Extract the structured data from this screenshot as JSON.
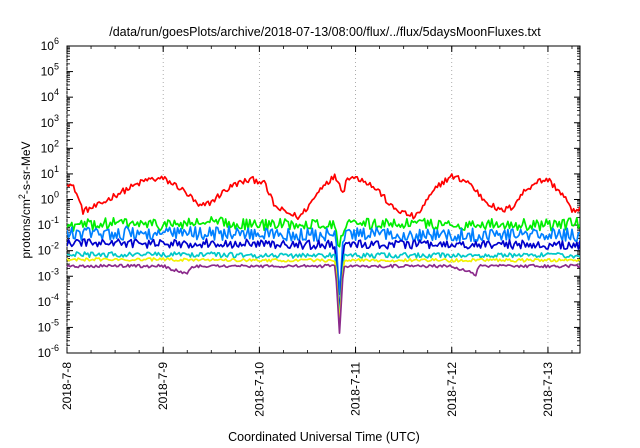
{
  "chart_data": {
    "type": "line",
    "title": "/data/run/goesPlots/archive/2018-07-13/08:00/flux/../flux/5daysMoonFluxes.txt",
    "xlabel": "Coordinated Universal Time (UTC)",
    "ylabel": {
      "pre": "protons/cm",
      "sup": "2",
      "post": "-s-sr-MeV"
    },
    "y_scale": "log",
    "ylim": [
      1e-06,
      1000000.0
    ],
    "yticks": [
      {
        "value": 1e-06,
        "base": "10",
        "exp": "-6"
      },
      {
        "value": 1e-05,
        "base": "10",
        "exp": "-5"
      },
      {
        "value": 0.0001,
        "base": "10",
        "exp": "-4"
      },
      {
        "value": 0.001,
        "base": "10",
        "exp": "-3"
      },
      {
        "value": 0.01,
        "base": "10",
        "exp": "-2"
      },
      {
        "value": 0.1,
        "base": "10",
        "exp": "-1"
      },
      {
        "value": 1.0,
        "base": "10",
        "exp": "0"
      },
      {
        "value": 10.0,
        "base": "10",
        "exp": "1"
      },
      {
        "value": 100.0,
        "base": "10",
        "exp": "2"
      },
      {
        "value": 1000.0,
        "base": "10",
        "exp": "3"
      },
      {
        "value": 10000.0,
        "base": "10",
        "exp": "4"
      },
      {
        "value": 100000.0,
        "base": "10",
        "exp": "5"
      },
      {
        "value": 1000000.0,
        "base": "10",
        "exp": "6"
      }
    ],
    "xlim": [
      "2018-07-08T00:00",
      "2018-07-13T08:00"
    ],
    "xticks": [
      {
        "date": "2018-07-08T00:00",
        "label": "2018-7-8"
      },
      {
        "date": "2018-07-09T00:00",
        "label": "2018-7-9"
      },
      {
        "date": "2018-07-10T00:00",
        "label": "2018-7-10"
      },
      {
        "date": "2018-07-11T00:00",
        "label": "2018-7-11"
      },
      {
        "date": "2018-07-12T00:00",
        "label": "2018-7-12"
      },
      {
        "date": "2018-07-13T00:00",
        "label": "2018-7-13"
      }
    ],
    "grid": true,
    "legend": "none",
    "series": [
      {
        "color": "#ff0000",
        "jitter": 0.25,
        "points": [
          [
            "2018-07-08T00:00",
            5.0
          ],
          [
            "2018-07-08T02:00",
            2.5
          ],
          [
            "2018-07-08T04:00",
            0.35
          ],
          [
            "2018-07-08T08:00",
            0.6
          ],
          [
            "2018-07-08T12:00",
            1.5
          ],
          [
            "2018-07-08T16:00",
            3.0
          ],
          [
            "2018-07-08T20:00",
            6.0
          ],
          [
            "2018-07-09T00:00",
            6.5
          ],
          [
            "2018-07-09T04:00",
            3.0
          ],
          [
            "2018-07-09T07:00",
            1.2
          ],
          [
            "2018-07-09T09:00",
            0.5
          ],
          [
            "2018-07-09T12:00",
            0.8
          ],
          [
            "2018-07-09T15:00",
            2.0
          ],
          [
            "2018-07-09T18:00",
            4.0
          ],
          [
            "2018-07-09T22:00",
            6.0
          ],
          [
            "2018-07-10T01:00",
            5.0
          ],
          [
            "2018-07-10T04:00",
            0.5
          ],
          [
            "2018-07-10T07:00",
            0.3
          ],
          [
            "2018-07-10T10:00",
            0.2
          ],
          [
            "2018-07-10T13:00",
            0.8
          ],
          [
            "2018-07-10T16:00",
            4.0
          ],
          [
            "2018-07-10T19:00",
            8.0
          ],
          [
            "2018-07-10T21:00",
            2.0
          ],
          [
            "2018-07-10T22:00",
            8.0
          ],
          [
            "2018-07-11T02:00",
            6.0
          ],
          [
            "2018-07-11T06:00",
            2.0
          ],
          [
            "2018-07-11T09:00",
            0.5
          ],
          [
            "2018-07-11T12:00",
            0.3
          ],
          [
            "2018-07-11T15:00",
            0.2
          ],
          [
            "2018-07-11T18:00",
            1.0
          ],
          [
            "2018-07-11T21:00",
            4.0
          ],
          [
            "2018-07-12T00:00",
            8.0
          ],
          [
            "2018-07-12T04:00",
            5.0
          ],
          [
            "2018-07-12T08:00",
            1.0
          ],
          [
            "2018-07-12T12:00",
            0.35
          ],
          [
            "2018-07-12T15:00",
            0.5
          ],
          [
            "2018-07-12T18:00",
            2.0
          ],
          [
            "2018-07-12T21:00",
            5.0
          ],
          [
            "2018-07-13T00:00",
            6.0
          ],
          [
            "2018-07-13T03:00",
            2.0
          ],
          [
            "2018-07-13T05:00",
            0.8
          ],
          [
            "2018-07-13T06:00",
            0.3
          ],
          [
            "2018-07-13T07:00",
            0.4
          ],
          [
            "2018-07-13T08:00",
            0.5
          ]
        ]
      },
      {
        "color": "#00ee00",
        "jitter": 0.45,
        "points": [
          [
            "2018-07-08T00:00",
            0.09
          ],
          [
            "2018-07-08T12:00",
            0.12
          ],
          [
            "2018-07-09T00:00",
            0.1
          ],
          [
            "2018-07-09T12:00",
            0.13
          ],
          [
            "2018-07-10T00:00",
            0.1
          ],
          [
            "2018-07-10T12:00",
            0.12
          ],
          [
            "2018-07-10T19:00",
            0.1
          ],
          [
            "2018-07-10T20:00",
            0.01
          ],
          [
            "2018-07-10T21:00",
            0.1
          ],
          [
            "2018-07-11T12:00",
            0.12
          ],
          [
            "2018-07-12T00:00",
            0.1
          ],
          [
            "2018-07-12T12:00",
            0.11
          ],
          [
            "2018-07-13T00:00",
            0.1
          ],
          [
            "2018-07-13T08:00",
            0.12
          ]
        ]
      },
      {
        "color": "#0080ff",
        "jitter": 0.55,
        "points": [
          [
            "2018-07-08T00:00",
            0.045
          ],
          [
            "2018-07-08T12:00",
            0.05
          ],
          [
            "2018-07-09T00:00",
            0.045
          ],
          [
            "2018-07-09T12:00",
            0.05
          ],
          [
            "2018-07-10T00:00",
            0.045
          ],
          [
            "2018-07-10T12:00",
            0.04
          ],
          [
            "2018-07-10T19:00",
            0.04
          ],
          [
            "2018-07-10T20:00",
            0.0002
          ],
          [
            "2018-07-10T21:00",
            0.04
          ],
          [
            "2018-07-11T12:00",
            0.045
          ],
          [
            "2018-07-12T00:00",
            0.04
          ],
          [
            "2018-07-12T12:00",
            0.045
          ],
          [
            "2018-07-13T00:00",
            0.04
          ],
          [
            "2018-07-13T08:00",
            0.04
          ]
        ]
      },
      {
        "color": "#0000cc",
        "jitter": 0.35,
        "points": [
          [
            "2018-07-08T00:00",
            0.02
          ],
          [
            "2018-07-08T12:00",
            0.02
          ],
          [
            "2018-07-09T00:00",
            0.018
          ],
          [
            "2018-07-09T12:00",
            0.02
          ],
          [
            "2018-07-10T00:00",
            0.018
          ],
          [
            "2018-07-10T12:00",
            0.017
          ],
          [
            "2018-07-10T19:00",
            0.017
          ],
          [
            "2018-07-10T20:00",
            3e-05
          ],
          [
            "2018-07-10T21:00",
            0.017
          ],
          [
            "2018-07-11T12:00",
            0.018
          ],
          [
            "2018-07-12T00:00",
            0.016
          ],
          [
            "2018-07-12T12:00",
            0.018
          ],
          [
            "2018-07-13T00:00",
            0.016
          ],
          [
            "2018-07-13T08:00",
            0.017
          ]
        ]
      },
      {
        "color": "#00c8c8",
        "jitter": 0.2,
        "points": [
          [
            "2018-07-08T00:00",
            0.007
          ],
          [
            "2018-07-08T12:00",
            0.007
          ],
          [
            "2018-07-09T00:00",
            0.007
          ],
          [
            "2018-07-09T12:00",
            0.007
          ],
          [
            "2018-07-10T00:00",
            0.0065
          ],
          [
            "2018-07-10T12:00",
            0.0065
          ],
          [
            "2018-07-10T19:00",
            0.0065
          ],
          [
            "2018-07-10T20:00",
            2e-05
          ],
          [
            "2018-07-10T21:00",
            0.0065
          ],
          [
            "2018-07-11T12:00",
            0.0065
          ],
          [
            "2018-07-12T00:00",
            0.0065
          ],
          [
            "2018-07-12T12:00",
            0.0065
          ],
          [
            "2018-07-13T00:00",
            0.0065
          ],
          [
            "2018-07-13T08:00",
            0.0065
          ]
        ]
      },
      {
        "color": "#f2f200",
        "jitter": 0.12,
        "points": [
          [
            "2018-07-08T00:00",
            0.0045
          ],
          [
            "2018-07-08T12:00",
            0.0045
          ],
          [
            "2018-07-09T00:00",
            0.0045
          ],
          [
            "2018-07-09T12:00",
            0.0045
          ],
          [
            "2018-07-10T00:00",
            0.0042
          ],
          [
            "2018-07-10T12:00",
            0.0042
          ],
          [
            "2018-07-10T19:00",
            0.0042
          ],
          [
            "2018-07-10T20:00",
            1.2e-05
          ],
          [
            "2018-07-10T21:00",
            0.0042
          ],
          [
            "2018-07-11T12:00",
            0.0042
          ],
          [
            "2018-07-12T00:00",
            0.0042
          ],
          [
            "2018-07-12T12:00",
            0.0042
          ],
          [
            "2018-07-13T00:00",
            0.0042
          ],
          [
            "2018-07-13T08:00",
            0.0042
          ]
        ]
      },
      {
        "color": "#8b2a8b",
        "jitter": 0.12,
        "points": [
          [
            "2018-07-08T00:00",
            0.0025
          ],
          [
            "2018-07-08T12:00",
            0.0025
          ],
          [
            "2018-07-09T00:00",
            0.0025
          ],
          [
            "2018-07-09T06:00",
            0.0012
          ],
          [
            "2018-07-09T07:00",
            0.0025
          ],
          [
            "2018-07-09T12:00",
            0.0025
          ],
          [
            "2018-07-10T00:00",
            0.0025
          ],
          [
            "2018-07-10T12:00",
            0.0025
          ],
          [
            "2018-07-10T19:00",
            0.0025
          ],
          [
            "2018-07-10T20:00",
            6e-06
          ],
          [
            "2018-07-10T21:00",
            0.0025
          ],
          [
            "2018-07-11T12:00",
            0.0025
          ],
          [
            "2018-07-12T00:00",
            0.0025
          ],
          [
            "2018-07-12T06:00",
            0.0012
          ],
          [
            "2018-07-12T07:00",
            0.0025
          ],
          [
            "2018-07-12T12:00",
            0.0025
          ],
          [
            "2018-07-13T00:00",
            0.0025
          ],
          [
            "2018-07-13T08:00",
            0.0025
          ]
        ]
      }
    ]
  }
}
